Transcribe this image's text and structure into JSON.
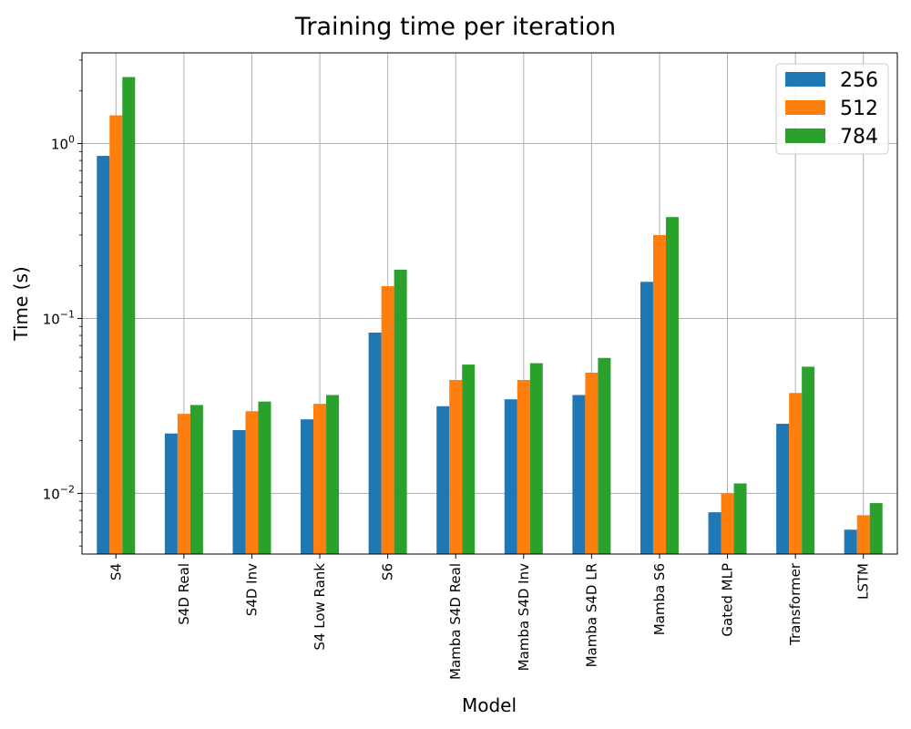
{
  "chart_data": {
    "type": "bar",
    "title": "Training time per iteration",
    "xlabel": "Model",
    "ylabel": "Time (s)",
    "yscale": "log",
    "ylim": [
      0.0045,
      3.3
    ],
    "grid": true,
    "legend_position": "top-right",
    "categories": [
      "S4",
      "S4D Real",
      "S4D Inv",
      "S4 Low Rank",
      "S6",
      "Mamba S4D Real",
      "Mamba S4D Inv",
      "Mamba S4D LR",
      "Mamba S6",
      "Gated MLP",
      "Transformer",
      "LSTM"
    ],
    "series": [
      {
        "name": "256",
        "color": "#1f77b4",
        "values": [
          0.85,
          0.022,
          0.023,
          0.0265,
          0.083,
          0.0315,
          0.0345,
          0.0365,
          0.162,
          0.0078,
          0.025,
          0.0062
        ]
      },
      {
        "name": "512",
        "color": "#ff7f0e",
        "values": [
          1.45,
          0.0285,
          0.0295,
          0.0325,
          0.153,
          0.0445,
          0.0445,
          0.049,
          0.3,
          0.01,
          0.0375,
          0.0075
        ]
      },
      {
        "name": "784",
        "color": "#2ca02c",
        "values": [
          2.4,
          0.032,
          0.0335,
          0.0365,
          0.19,
          0.0545,
          0.0555,
          0.0595,
          0.38,
          0.0114,
          0.053,
          0.0088
        ]
      }
    ],
    "yticks": [
      {
        "value": 0.01,
        "label": "10",
        "exp": "−2"
      },
      {
        "value": 0.1,
        "label": "10",
        "exp": "−1"
      },
      {
        "value": 1,
        "label": "10",
        "exp": "0"
      }
    ]
  }
}
